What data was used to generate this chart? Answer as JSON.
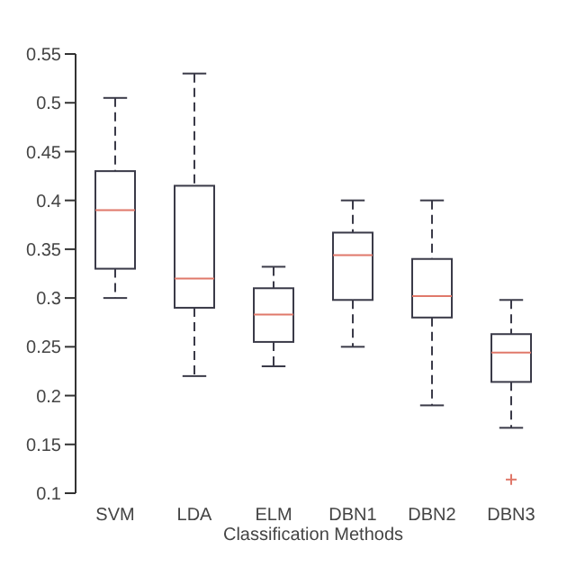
{
  "chart_data": {
    "type": "box",
    "xlabel": "Classification Methods",
    "categories": [
      "SVM",
      "LDA",
      "ELM",
      "DBN1",
      "DBN2",
      "DBN3"
    ],
    "ylim": [
      0.1,
      0.55
    ],
    "yticks": [
      0.1,
      0.15,
      0.2,
      0.25,
      0.3,
      0.35,
      0.4,
      0.45,
      0.5,
      0.55
    ],
    "series": [
      {
        "color": "#3a3a48",
        "boxes": [
          {
            "low": 0.3,
            "q1": 0.33,
            "median": 0.39,
            "q3": 0.43,
            "high": 0.505
          },
          {
            "low": 0.22,
            "q1": 0.29,
            "median": 0.32,
            "q3": 0.415,
            "high": 0.53
          },
          {
            "low": 0.23,
            "q1": 0.255,
            "median": 0.283,
            "q3": 0.31,
            "high": 0.332
          },
          {
            "low": 0.25,
            "q1": 0.298,
            "median": 0.344,
            "q3": 0.367,
            "high": 0.4
          },
          {
            "low": 0.19,
            "q1": 0.28,
            "median": 0.302,
            "q3": 0.34,
            "high": 0.4
          },
          {
            "low": 0.167,
            "q1": 0.214,
            "median": 0.244,
            "q3": 0.263,
            "high": 0.298,
            "outliers": [
              0.114
            ]
          }
        ]
      }
    ]
  }
}
